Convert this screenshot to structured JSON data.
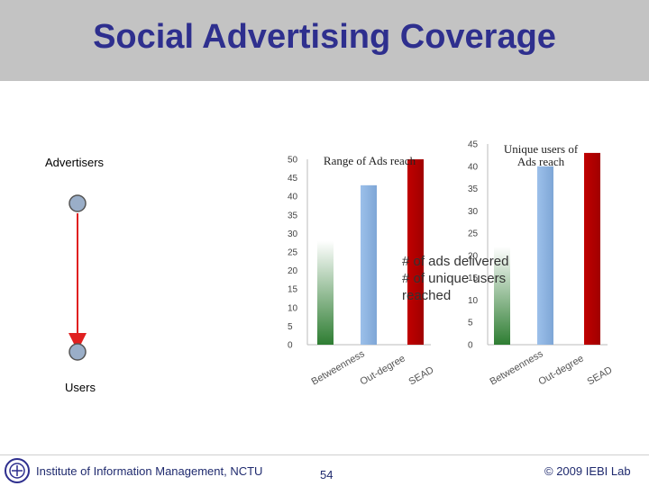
{
  "slide": {
    "title": "Social Advertising Coverage",
    "advertisers_label": "Advertisers",
    "users_label": "Users",
    "footer_institute": "Institute of Information Management, NCTU",
    "footer_page": "54",
    "footer_copyright": "© 2009 IEBI Lab"
  },
  "colors": {
    "title": "#2e2f8e",
    "title_bar": "#c3c3c3",
    "bar_green": "#2e7d32",
    "bar_blue": "#8db3e2",
    "bar_red": "#c00000",
    "arrow": "#e02020",
    "node": "#9aaec8"
  },
  "overlay_legend": [
    "# of ads delivered",
    "# of unique users reached"
  ],
  "chart_data": [
    {
      "type": "bar",
      "title": "Range of Ads reach",
      "categories": [
        "Betweenness",
        "Out-degree",
        "SEAD"
      ],
      "values": [
        28,
        43,
        50
      ],
      "ylim": [
        0,
        50
      ],
      "yticks": [
        0,
        5,
        10,
        15,
        20,
        25,
        30,
        35,
        40,
        45,
        50
      ],
      "bar_colors": [
        "#2e7d32",
        "#8db3e2",
        "#c00000"
      ],
      "grid": false
    },
    {
      "type": "bar",
      "title": "Unique users of Ads reach",
      "categories": [
        "Betweenness",
        "Out-degree",
        "SEAD"
      ],
      "values": [
        22,
        40,
        43
      ],
      "ylim": [
        0,
        45
      ],
      "yticks": [
        0,
        5,
        10,
        15,
        20,
        25,
        30,
        35,
        40,
        45
      ],
      "bar_colors": [
        "#2e7d32",
        "#8db3e2",
        "#c00000"
      ],
      "grid": false
    }
  ]
}
